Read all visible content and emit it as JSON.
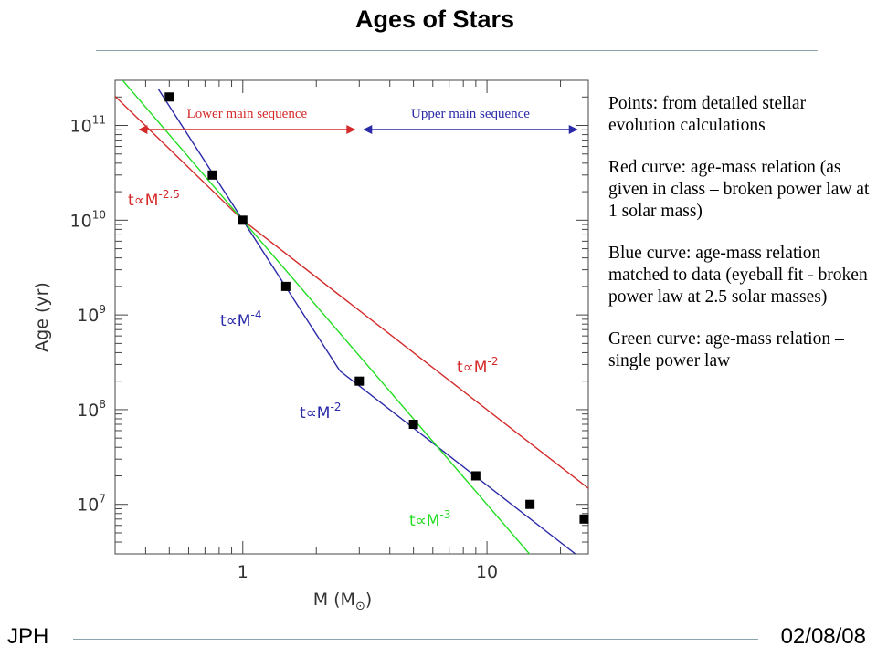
{
  "slide": {
    "title": "Ages of Stars",
    "footer_left": "JPH",
    "footer_right": "02/08/08"
  },
  "notes": [
    "Points:  from detailed stellar evolution calculations",
    "Red curve: age-mass relation (as given in class – broken power law at 1 solar mass)",
    "Blue curve: age-mass relation matched to data (eyeball fit - broken power law at 2.5 solar masses)",
    "Green curve: age-mass relation – single power law"
  ],
  "colors": {
    "red": "#d42a2a",
    "blue": "#2a2aa8",
    "green": "#22dd22",
    "points": "#000000"
  },
  "chart_data": {
    "type": "scatter",
    "xscale": "log",
    "yscale": "log",
    "xlim": [
      0.3,
      26
    ],
    "ylim": [
      3000000.0,
      300000000000.0
    ],
    "xlabel": "M",
    "xlabel_unit": "(M",
    "ylabel": "Age  (yr)",
    "xtick_labels": [
      {
        "value": 1,
        "label": "1"
      },
      {
        "value": 10,
        "label": "10"
      }
    ],
    "ytick_labels": [
      {
        "value": 10000000.0,
        "base": "10",
        "exp": "7"
      },
      {
        "value": 100000000.0,
        "base": "10",
        "exp": "8"
      },
      {
        "value": 1000000000.0,
        "base": "10",
        "exp": "9"
      },
      {
        "value": 10000000000.0,
        "base": "10",
        "exp": "10"
      },
      {
        "value": 100000000000.0,
        "base": "10",
        "exp": "11"
      }
    ],
    "points": {
      "x": [
        0.5,
        0.75,
        1,
        1.5,
        3,
        5,
        9,
        15,
        25
      ],
      "y": [
        200000000000.0,
        30000000000.0,
        10000000000.0,
        2000000000.0,
        200000000.0,
        70000000.0,
        20000000.0,
        10000000.0,
        7000000.0
      ]
    },
    "curves": [
      {
        "color_key": "red",
        "segments": [
          {
            "x": [
              0.3,
              1
            ],
            "y": [
              203000000000.0,
              10000000000.0
            ]
          },
          {
            "x": [
              1,
              26
            ],
            "y": [
              10000000000.0,
              14800000.0
            ]
          }
        ]
      },
      {
        "color_key": "blue",
        "segments": [
          {
            "x": [
              0.45,
              2.5
            ],
            "y": [
              244000000000.0,
              256000000.0
            ]
          },
          {
            "x": [
              2.5,
              23
            ],
            "y": [
              256000000.0,
              3000000.0
            ]
          }
        ]
      },
      {
        "color_key": "green",
        "segments": [
          {
            "x": [
              0.3,
              15
            ],
            "y": [
              370000000000.0,
              2960000.0
            ]
          }
        ]
      }
    ],
    "annotations": [
      {
        "id": "red-low",
        "text": "t∝M",
        "exp": "-2.5",
        "color_key": "red"
      },
      {
        "id": "red-high",
        "text": "t∝M",
        "exp": "-2",
        "color_key": "red"
      },
      {
        "id": "blue-low",
        "text": "t∝M",
        "exp": "-4",
        "color_key": "blue"
      },
      {
        "id": "blue-high",
        "text": "t∝M",
        "exp": "-2",
        "color_key": "blue"
      },
      {
        "id": "green",
        "text": "t∝M",
        "exp": "-3",
        "color_key": "green"
      }
    ],
    "regions": [
      {
        "label": "Lower main sequence",
        "x": [
          0.4,
          3
        ],
        "color_key": "red"
      },
      {
        "label": "Upper main sequence",
        "x": [
          3,
          24
        ],
        "color_key": "blue"
      }
    ]
  }
}
